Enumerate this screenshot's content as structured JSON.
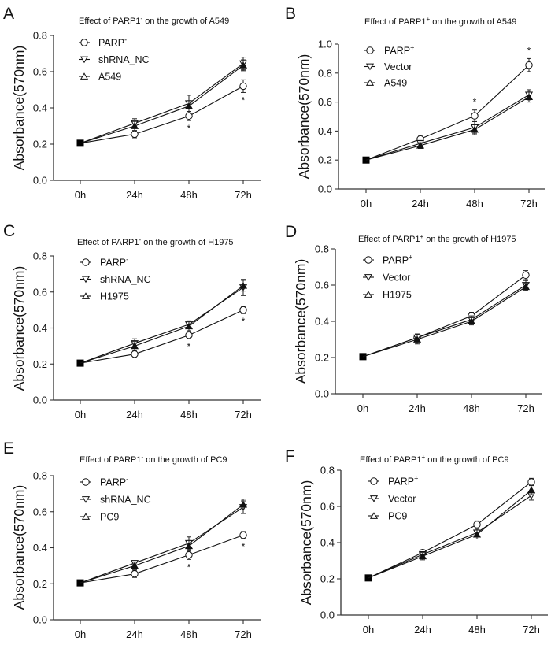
{
  "figure": {
    "y_axis_label": "Absorbance(570nm)"
  },
  "chart_data": [
    {
      "panel": "A",
      "type": "line",
      "title": "Effect of PARP1⁻ on the growth of A549",
      "title_main": "Effect of PARP1",
      "title_sup": "-",
      "title_rest": " on the growth of A549",
      "xlabel": "",
      "ylabel": "Absorbance(570nm)",
      "categories": [
        "0h",
        "24h",
        "48h",
        "72h"
      ],
      "ylim": [
        0,
        0.8
      ],
      "yticks": [
        "0.0",
        "0.2",
        "0.4",
        "0.6",
        "0.8"
      ],
      "grid": false,
      "legend_position": "top-left",
      "series": [
        {
          "name": "PARP-",
          "label_main": "PARP",
          "label_sup": "-",
          "marker": "circle",
          "values": [
            0.205,
            0.255,
            0.355,
            0.52
          ],
          "errors": [
            0.005,
            0.02,
            0.025,
            0.035
          ],
          "significant": [
            false,
            false,
            true,
            true
          ]
        },
        {
          "name": "shRNA_NC",
          "label_main": "shRNA_NC",
          "label_sup": "",
          "marker": "triangle-down",
          "values": [
            0.205,
            0.315,
            0.425,
            0.645
          ],
          "errors": [
            0.005,
            0.025,
            0.045,
            0.035
          ],
          "significant": [
            false,
            false,
            false,
            false
          ]
        },
        {
          "name": "A549",
          "label_main": "A549",
          "label_sup": "",
          "marker": "triangle-up",
          "values": [
            0.205,
            0.3,
            0.41,
            0.635
          ],
          "errors": [
            0.005,
            0.025,
            0.03,
            0.03
          ],
          "significant": [
            false,
            false,
            false,
            false
          ]
        }
      ]
    },
    {
      "panel": "B",
      "type": "line",
      "title": "Effect of PARP1⁺ on the growth of A549",
      "title_main": "Effect of PARP1",
      "title_sup": "+",
      "title_rest": " on the growth of A549",
      "xlabel": "",
      "ylabel": "Absorbance(570nm)",
      "categories": [
        "0h",
        "24h",
        "48h",
        "72h"
      ],
      "ylim": [
        0,
        1.0
      ],
      "yticks": [
        "0.0",
        "0.2",
        "0.4",
        "0.6",
        "0.8",
        "1.0"
      ],
      "grid": false,
      "legend_position": "top-left",
      "series": [
        {
          "name": "PARP+",
          "label_main": "PARP",
          "label_sup": "+",
          "marker": "circle",
          "values": [
            0.2,
            0.345,
            0.505,
            0.855
          ],
          "errors": [
            0.005,
            0.02,
            0.04,
            0.045
          ],
          "significant": [
            false,
            false,
            true,
            true
          ]
        },
        {
          "name": "Vector",
          "label_main": "Vector",
          "label_sup": "",
          "marker": "triangle-down",
          "values": [
            0.2,
            0.315,
            0.425,
            0.65
          ],
          "errors": [
            0.005,
            0.02,
            0.04,
            0.035
          ],
          "significant": [
            false,
            false,
            false,
            false
          ]
        },
        {
          "name": "A549",
          "label_main": "A549",
          "label_sup": "",
          "marker": "triangle-up",
          "values": [
            0.2,
            0.3,
            0.41,
            0.635
          ],
          "errors": [
            0.005,
            0.02,
            0.035,
            0.035
          ],
          "significant": [
            false,
            false,
            false,
            false
          ]
        }
      ]
    },
    {
      "panel": "C",
      "type": "line",
      "title": "Effect of PARP1⁻ on the growth of H1975",
      "title_main": "Effect of PARP1",
      "title_sup": "-",
      "title_rest": " on the growth of H1975",
      "xlabel": "",
      "ylabel": "Absorbance(570nm)",
      "categories": [
        "0h",
        "24h",
        "48h",
        "72h"
      ],
      "ylim": [
        0,
        0.8
      ],
      "yticks": [
        "0.0",
        "0.2",
        "0.4",
        "0.6",
        "0.8"
      ],
      "grid": false,
      "legend_position": "top-left",
      "series": [
        {
          "name": "PARP-",
          "label_main": "PARP",
          "label_sup": "-",
          "marker": "circle",
          "values": [
            0.205,
            0.255,
            0.36,
            0.5
          ],
          "errors": [
            0.005,
            0.02,
            0.02,
            0.02
          ],
          "significant": [
            false,
            false,
            true,
            true
          ]
        },
        {
          "name": "shRNA_NC",
          "label_main": "shRNA_NC",
          "label_sup": "",
          "marker": "triangle-down",
          "values": [
            0.205,
            0.315,
            0.42,
            0.625
          ],
          "errors": [
            0.005,
            0.025,
            0.02,
            0.045
          ],
          "significant": [
            false,
            false,
            false,
            false
          ]
        },
        {
          "name": "H1975",
          "label_main": "H1975",
          "label_sup": "",
          "marker": "triangle-up",
          "values": [
            0.205,
            0.3,
            0.41,
            0.635
          ],
          "errors": [
            0.005,
            0.025,
            0.025,
            0.03
          ],
          "significant": [
            false,
            false,
            false,
            false
          ]
        }
      ]
    },
    {
      "panel": "D",
      "type": "line",
      "title": "Effect of PARP1⁺ on the growth of H1975",
      "title_main": "Effect of PARP1",
      "title_sup": "+",
      "title_rest": " on the growth of H1975",
      "xlabel": "",
      "ylabel": "Absorbance(570nm)",
      "categories": [
        "0h",
        "24h",
        "48h",
        "72h"
      ],
      "ylim": [
        0,
        0.8
      ],
      "yticks": [
        "0.0",
        "0.2",
        "0.4",
        "0.6",
        "0.8"
      ],
      "grid": false,
      "legend_position": "top-left",
      "series": [
        {
          "name": "PARP+",
          "label_main": "PARP",
          "label_sup": "+",
          "marker": "circle",
          "values": [
            0.205,
            0.31,
            0.43,
            0.655
          ],
          "errors": [
            0.005,
            0.02,
            0.02,
            0.025
          ],
          "significant": [
            false,
            false,
            false,
            false
          ]
        },
        {
          "name": "Vector",
          "label_main": "Vector",
          "label_sup": "",
          "marker": "triangle-down",
          "values": [
            0.205,
            0.31,
            0.41,
            0.6
          ],
          "errors": [
            0.005,
            0.02,
            0.02,
            0.025
          ],
          "significant": [
            false,
            false,
            false,
            false
          ]
        },
        {
          "name": "H1975",
          "label_main": "H1975",
          "label_sup": "",
          "marker": "triangle-up",
          "values": [
            0.205,
            0.3,
            0.4,
            0.59
          ],
          "errors": [
            0.005,
            0.025,
            0.02,
            0.02
          ],
          "significant": [
            false,
            false,
            false,
            false
          ]
        }
      ]
    },
    {
      "panel": "E",
      "type": "line",
      "title": "Effect of PARP1⁻ on the growth of PC9",
      "title_main": "Effect of PARP1",
      "title_sup": "-",
      "title_rest": " on the growth of PC9",
      "xlabel": "",
      "ylabel": "Absorbance(570nm)",
      "categories": [
        "0h",
        "24h",
        "48h",
        "72h"
      ],
      "ylim": [
        0,
        0.8
      ],
      "yticks": [
        "0.0",
        "0.2",
        "0.4",
        "0.6",
        "0.8"
      ],
      "grid": false,
      "legend_position": "top-left",
      "series": [
        {
          "name": "PARP-",
          "label_main": "PARP",
          "label_sup": "-",
          "marker": "circle",
          "values": [
            0.205,
            0.255,
            0.36,
            0.47
          ],
          "errors": [
            0.005,
            0.02,
            0.025,
            0.02
          ],
          "significant": [
            false,
            false,
            true,
            true
          ]
        },
        {
          "name": "shRNA_NC",
          "label_main": "shRNA_NC",
          "label_sup": "",
          "marker": "triangle-down",
          "values": [
            0.205,
            0.315,
            0.425,
            0.625
          ],
          "errors": [
            0.005,
            0.01,
            0.035,
            0.035
          ],
          "significant": [
            false,
            false,
            false,
            false
          ]
        },
        {
          "name": "PC9",
          "label_main": "PC9",
          "label_sup": "",
          "marker": "triangle-up",
          "values": [
            0.205,
            0.3,
            0.41,
            0.64
          ],
          "errors": [
            0.005,
            0.02,
            0.03,
            0.03
          ],
          "significant": [
            false,
            false,
            false,
            false
          ]
        }
      ]
    },
    {
      "panel": "F",
      "type": "line",
      "title": "Effect of PARP1⁺ on the growth of PC9",
      "title_main": "Effect of PARP1",
      "title_sup": "+",
      "title_rest": " on the growth of PC9",
      "xlabel": "",
      "ylabel": "Absorbance(570nm)",
      "categories": [
        "0h",
        "24h",
        "48h",
        "72h"
      ],
      "ylim": [
        0,
        0.8
      ],
      "yticks": [
        "0.0",
        "0.2",
        "0.4",
        "0.6",
        "0.8"
      ],
      "grid": false,
      "legend_position": "top-left",
      "series": [
        {
          "name": "PARP+",
          "label_main": "PARP",
          "label_sup": "+",
          "marker": "circle",
          "values": [
            0.205,
            0.345,
            0.5,
            0.735
          ],
          "errors": [
            0.005,
            0.015,
            0.02,
            0.02
          ],
          "significant": [
            false,
            false,
            false,
            false
          ]
        },
        {
          "name": "Vector",
          "label_main": "Vector",
          "label_sup": "",
          "marker": "triangle-down",
          "values": [
            0.205,
            0.335,
            0.455,
            0.66
          ],
          "errors": [
            0.005,
            0.015,
            0.02,
            0.025
          ],
          "significant": [
            false,
            false,
            false,
            false
          ]
        },
        {
          "name": "PC9",
          "label_main": "PC9",
          "label_sup": "",
          "marker": "triangle-up",
          "values": [
            0.205,
            0.325,
            0.445,
            0.69
          ],
          "errors": [
            0.005,
            0.02,
            0.025,
            0.025
          ],
          "significant": [
            false,
            false,
            false,
            false
          ]
        }
      ]
    }
  ]
}
